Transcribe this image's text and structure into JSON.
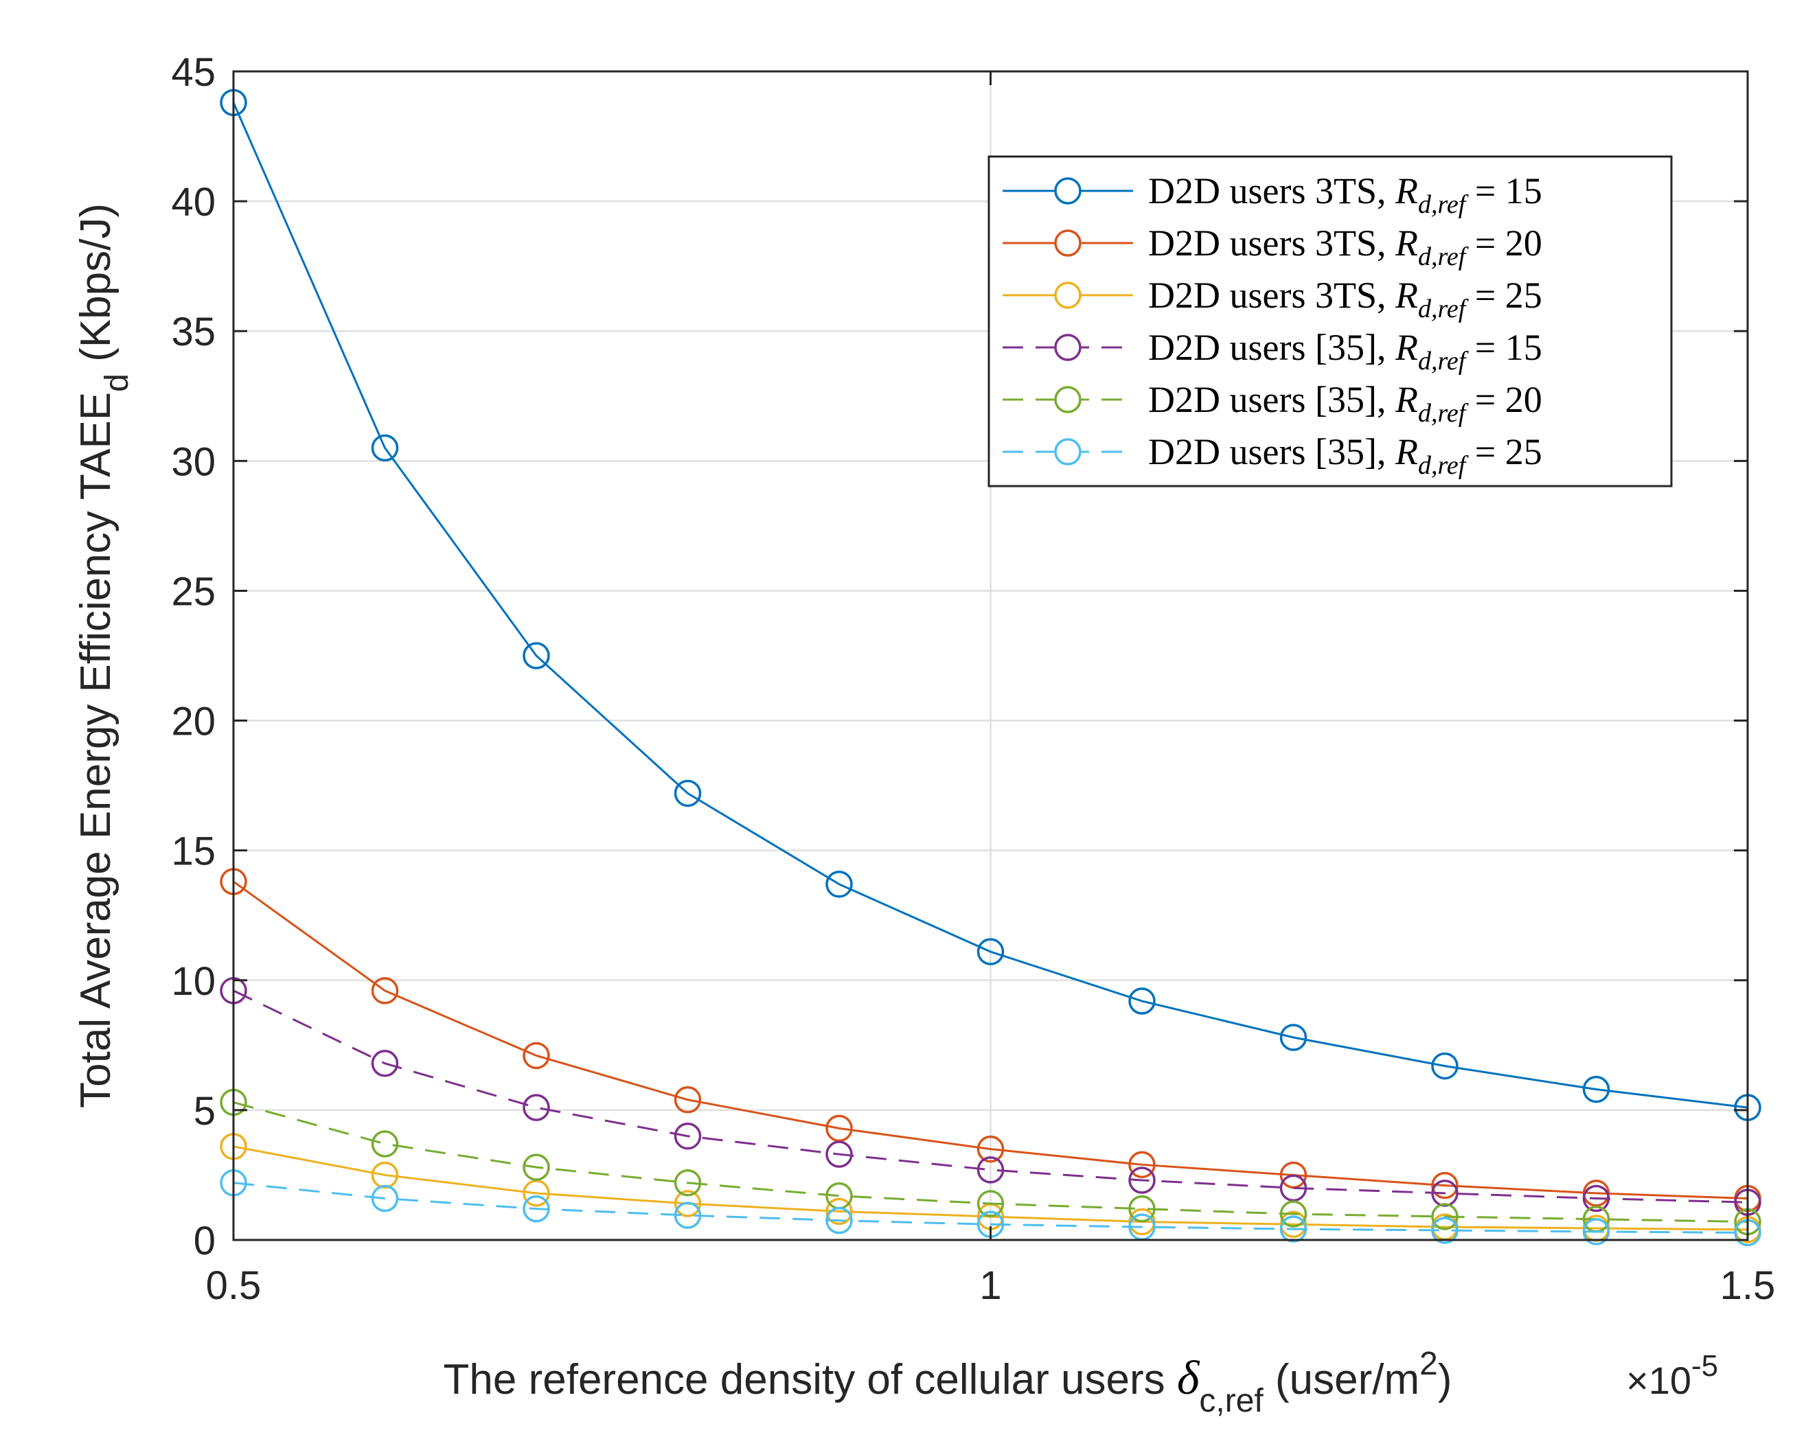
{
  "chart_data": {
    "type": "line",
    "xlabel_main": "The reference density of cellular users ",
    "xlabel_symbol": "δ",
    "xlabel_symbol_sub": "c,ref",
    "xlabel_unit": " (user/m",
    "xlabel_unit_sup": "2",
    "xlabel_unit_close": ")",
    "x_multiplier": "×10",
    "x_multiplier_exp": "-5",
    "ylabel_main": "Total Average Energy Efficiency TAEE",
    "ylabel_sub": "d",
    "ylabel_unit": " (Kbps/J)",
    "xlim": [
      0.5,
      1.5
    ],
    "ylim": [
      0,
      45
    ],
    "x_ticks": [
      0.5,
      1,
      1.5
    ],
    "x_tick_labels": [
      "0.5",
      "1",
      "1.5"
    ],
    "y_ticks": [
      0,
      5,
      10,
      15,
      20,
      25,
      30,
      35,
      40,
      45
    ],
    "y_tick_labels": [
      "0",
      "5",
      "10",
      "15",
      "20",
      "25",
      "30",
      "35",
      "40",
      "45"
    ],
    "x": [
      0.5,
      0.6,
      0.7,
      0.8,
      0.9,
      1.0,
      1.1,
      1.2,
      1.3,
      1.4,
      1.5
    ],
    "series": [
      {
        "name": "D2D users 3TS, R_{d,ref} = 15",
        "legend_text": "D2D users 3TS, ",
        "legend_value": "15",
        "color": "#0072BD",
        "dash": "solid",
        "values": [
          43.8,
          30.5,
          22.5,
          17.2,
          13.7,
          11.1,
          9.2,
          7.8,
          6.7,
          5.8,
          5.1
        ]
      },
      {
        "name": "D2D users 3TS, R_{d,ref} = 20",
        "legend_text": "D2D users 3TS, ",
        "legend_value": "20",
        "color": "#D95319",
        "dash": "solid",
        "values": [
          13.8,
          9.6,
          7.1,
          5.4,
          4.3,
          3.5,
          2.9,
          2.5,
          2.1,
          1.8,
          1.6
        ]
      },
      {
        "name": "D2D users 3TS, R_{d,ref} = 25",
        "legend_text": "D2D users 3TS, ",
        "legend_value": "25",
        "color": "#EDB120",
        "dash": "solid",
        "values": [
          3.6,
          2.5,
          1.8,
          1.4,
          1.1,
          0.9,
          0.7,
          0.6,
          0.5,
          0.45,
          0.4
        ]
      },
      {
        "name": "D2D users [35], R_{d,ref} = 15",
        "legend_text": "D2D users [35], ",
        "legend_value": "15",
        "color": "#7E2F8E",
        "dash": "dashed",
        "values": [
          9.6,
          6.8,
          5.1,
          4.0,
          3.3,
          2.7,
          2.3,
          2.0,
          1.8,
          1.6,
          1.45
        ]
      },
      {
        "name": "D2D users [35], R_{d,ref} = 20",
        "legend_text": "D2D users [35], ",
        "legend_value": "20",
        "color": "#77AC30",
        "dash": "dashed",
        "values": [
          5.3,
          3.7,
          2.8,
          2.2,
          1.7,
          1.4,
          1.2,
          1.0,
          0.9,
          0.8,
          0.7
        ]
      },
      {
        "name": "D2D users [35], R_{d,ref} = 25",
        "legend_text": "D2D users [35], ",
        "legend_value": "25",
        "color": "#4DBEEE",
        "dash": "dashed",
        "values": [
          2.2,
          1.6,
          1.2,
          0.95,
          0.75,
          0.6,
          0.5,
          0.42,
          0.37,
          0.32,
          0.28
        ]
      }
    ],
    "legend_position": "top-right",
    "grid": true
  }
}
